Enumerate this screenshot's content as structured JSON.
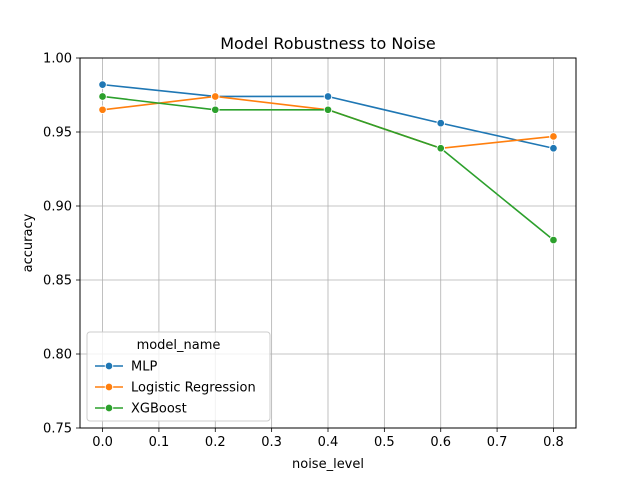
{
  "chart_data": {
    "type": "line",
    "title": "Model Robustness to Noise",
    "xlabel": "noise_level",
    "ylabel": "accuracy",
    "xlim": [
      -0.04,
      0.84
    ],
    "ylim": [
      0.75,
      1.0
    ],
    "xticks": [
      0.0,
      0.1,
      0.2,
      0.3,
      0.4,
      0.5,
      0.6,
      0.7,
      0.8
    ],
    "xtick_labels": [
      "0.0",
      "0.1",
      "0.2",
      "0.3",
      "0.4",
      "0.5",
      "0.6",
      "0.7",
      "0.8"
    ],
    "yticks": [
      0.75,
      0.8,
      0.85,
      0.9,
      0.95,
      1.0
    ],
    "ytick_labels": [
      "0.75",
      "0.80",
      "0.85",
      "0.90",
      "0.95",
      "1.00"
    ],
    "grid": true,
    "legend": {
      "title": "model_name",
      "placement": "lower-left"
    },
    "x": [
      0.0,
      0.2,
      0.4,
      0.6,
      0.8
    ],
    "series": [
      {
        "name": "MLP",
        "color": "#1f77b4",
        "values": [
          0.982,
          0.974,
          0.974,
          0.956,
          0.939
        ]
      },
      {
        "name": "Logistic Regression",
        "color": "#ff7f0e",
        "values": [
          0.965,
          0.974,
          0.965,
          0.939,
          0.947
        ]
      },
      {
        "name": "XGBoost",
        "color": "#2ca02c",
        "values": [
          0.974,
          0.965,
          0.965,
          0.939,
          0.877
        ]
      }
    ]
  }
}
